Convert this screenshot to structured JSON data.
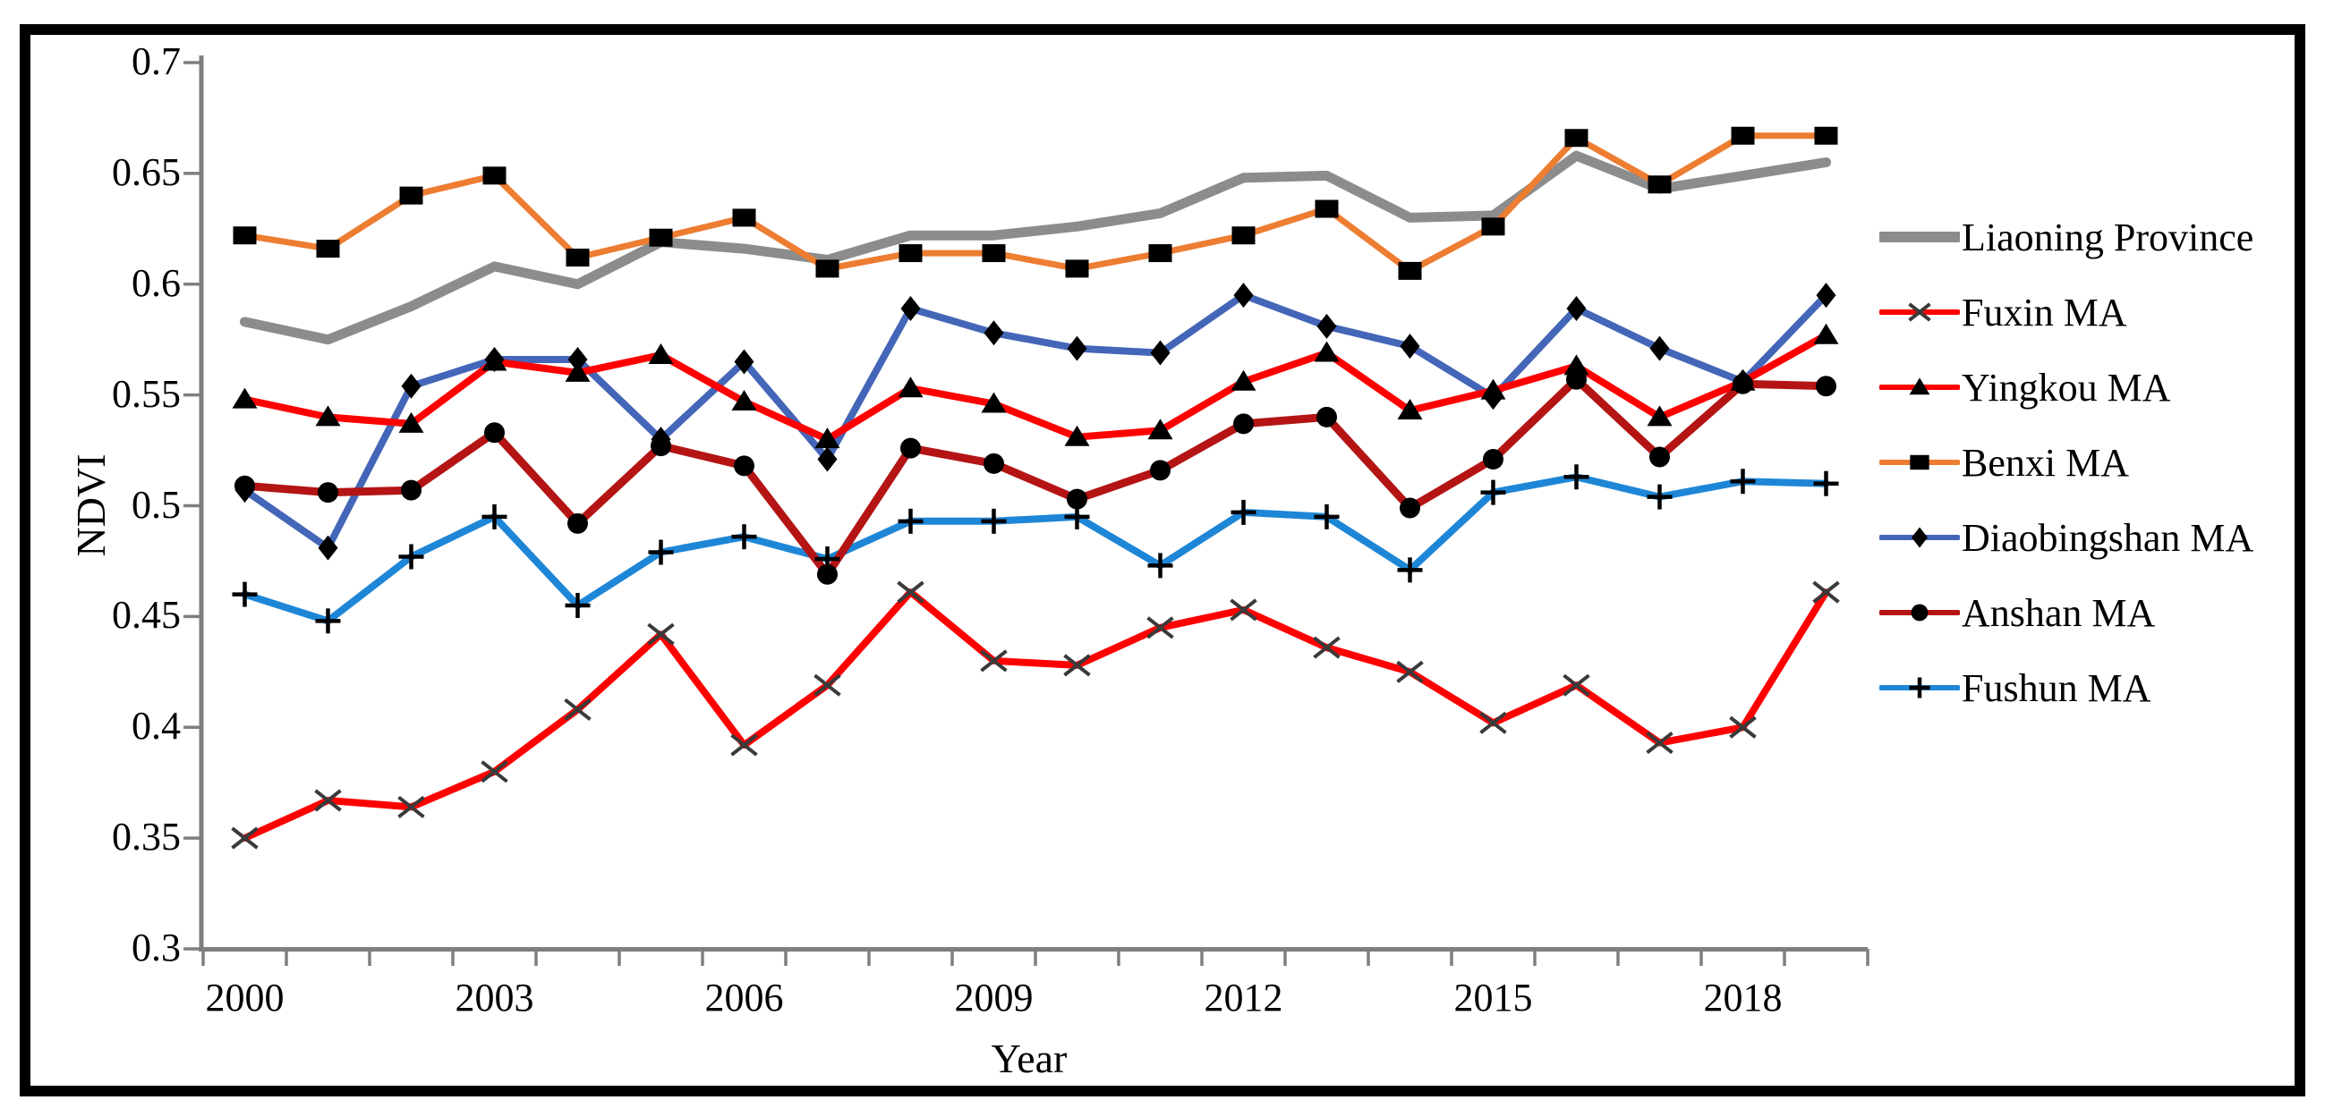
{
  "chart_data": {
    "type": "line",
    "title": "",
    "xlabel": "Year",
    "ylabel": "NDVI",
    "ylim": [
      0.3,
      0.7
    ],
    "xlim_years": [
      2000,
      2019
    ],
    "grid": false,
    "legend_position": "right-outside",
    "y_ticks": [
      0.7,
      0.65,
      0.6,
      0.55,
      0.5,
      0.45,
      0.4,
      0.35,
      0.3
    ],
    "y_tick_labels": [
      "0.7",
      "0.65",
      "0.6",
      "0.55",
      "0.5",
      "0.45",
      "0.4",
      "0.35",
      "0.3"
    ],
    "x_tick_labels": [
      "2000",
      "2003",
      "2006",
      "2009",
      "2012",
      "2015",
      "2018"
    ],
    "x_tick_indices": [
      0,
      3,
      6,
      9,
      12,
      15,
      18
    ],
    "years": [
      2000,
      2001,
      2002,
      2003,
      2004,
      2005,
      2006,
      2007,
      2008,
      2009,
      2010,
      2011,
      2012,
      2013,
      2014,
      2015,
      2016,
      2017,
      2018,
      2019
    ],
    "axis_color": "#7F7F7F",
    "series": [
      {
        "name": "Liaoning Province",
        "color": "#8C8C8C",
        "marker": "none",
        "marker_color": "#000000",
        "line_width": 11,
        "values": [
          0.583,
          0.575,
          0.59,
          0.608,
          0.6,
          0.619,
          0.616,
          0.611,
          0.622,
          0.622,
          0.626,
          0.632,
          0.648,
          0.649,
          0.63,
          0.631,
          0.658,
          0.643,
          0.649,
          0.655
        ]
      },
      {
        "name": "Fuxin MA",
        "color": "#FF0000",
        "marker": "x",
        "marker_color": "#3A3A3A",
        "line_width": 8,
        "values": [
          0.35,
          0.367,
          0.364,
          0.38,
          0.408,
          0.442,
          0.392,
          0.419,
          0.461,
          0.43,
          0.428,
          0.445,
          0.453,
          0.436,
          0.425,
          0.402,
          0.419,
          0.393,
          0.4,
          0.461
        ]
      },
      {
        "name": "Yingkou MA",
        "color": "#FF0000",
        "marker": "triangle",
        "marker_color": "#000000",
        "line_width": 8,
        "values": [
          0.548,
          0.54,
          0.537,
          0.565,
          0.56,
          0.568,
          0.547,
          0.53,
          0.553,
          0.546,
          0.531,
          0.534,
          0.556,
          0.569,
          0.543,
          0.552,
          0.563,
          0.54,
          0.556,
          0.577
        ]
      },
      {
        "name": "Benxi MA",
        "color": "#ED7D31",
        "marker": "square",
        "marker_color": "#000000",
        "line_width": 7,
        "values": [
          0.622,
          0.616,
          0.64,
          0.649,
          0.612,
          0.621,
          0.63,
          0.607,
          0.614,
          0.614,
          0.607,
          0.614,
          0.622,
          0.634,
          0.606,
          0.626,
          0.666,
          0.645,
          0.667,
          0.667
        ]
      },
      {
        "name": "Diaobingshan MA",
        "color": "#4466B8",
        "marker": "diamond",
        "marker_color": "#000000",
        "line_width": 8,
        "values": [
          0.507,
          0.481,
          0.554,
          0.566,
          0.566,
          0.53,
          0.565,
          0.521,
          0.589,
          0.578,
          0.571,
          0.569,
          0.595,
          0.581,
          0.572,
          0.549,
          0.589,
          0.571,
          0.556,
          0.595
        ]
      },
      {
        "name": "Anshan MA",
        "color": "#B41414",
        "marker": "circle",
        "marker_color": "#000000",
        "line_width": 9,
        "values": [
          0.509,
          0.506,
          0.507,
          0.533,
          0.492,
          0.527,
          0.518,
          0.469,
          0.526,
          0.519,
          0.503,
          0.516,
          0.537,
          0.54,
          0.499,
          0.521,
          0.557,
          0.522,
          0.555,
          0.554
        ]
      },
      {
        "name": "Fushun MA",
        "color": "#1E86D6",
        "marker": "plus",
        "marker_color": "#000000",
        "line_width": 8,
        "values": [
          0.46,
          0.448,
          0.477,
          0.495,
          0.455,
          0.479,
          0.486,
          0.476,
          0.493,
          0.493,
          0.495,
          0.473,
          0.497,
          0.495,
          0.471,
          0.506,
          0.513,
          0.504,
          0.511,
          0.51
        ]
      }
    ]
  }
}
